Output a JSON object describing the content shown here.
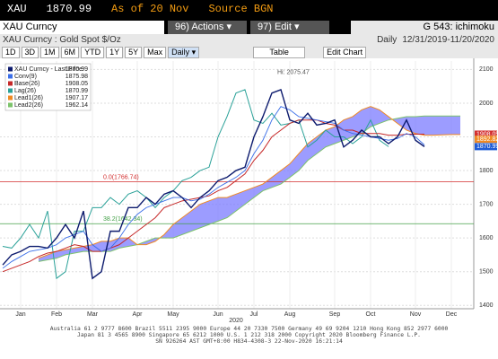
{
  "header": {
    "ticker": "XAU",
    "price": "1870.99",
    "as_of": "As of 20 Nov",
    "source": "Source BGN"
  },
  "toolbar": {
    "security": "XAU Curncy",
    "actions": "96) Actions ▾",
    "edit": "97) Edit ▾",
    "chart_id": "G 543: ichimoku",
    "description": "XAU Curncy : Gold Spot  $/Oz",
    "period": "Daily",
    "range": "12/31/2019-11/20/2020",
    "buttons": [
      "1D",
      "3D",
      "1M",
      "6M",
      "YTD",
      "1Y",
      "5Y",
      "Max"
    ],
    "frequency": "Daily ▾",
    "table": "Table",
    "edit_chart": "Edit Chart"
  },
  "chart_data": {
    "type": "line",
    "categories": [
      null,
      null,
      "Jan",
      null,
      null,
      null,
      "Feb",
      null,
      null,
      null,
      "Mar",
      null,
      null,
      null,
      null,
      "Apr",
      null,
      null,
      null,
      "May",
      null,
      null,
      null,
      null,
      "Jun",
      null,
      null,
      null,
      "Jul",
      null,
      null,
      null,
      "Aug",
      null,
      null,
      null,
      null,
      "Sep",
      null,
      null,
      null,
      "Oct",
      null,
      null,
      null,
      null,
      "Nov",
      null,
      null,
      null,
      "Dec",
      null
    ],
    "year_label": "2020",
    "series": [
      {
        "name": "XAU Curncy - Last Price",
        "legend_value": 1870.99,
        "color": "#0d1b6e",
        "width": 1.4,
        "values": [
          1520,
          1550,
          1560,
          1575,
          1575,
          1570,
          1600,
          1640,
          1600,
          1680,
          1480,
          1500,
          1620,
          1620,
          1690,
          1690,
          1720,
          1700,
          1730,
          1740,
          1720,
          1690,
          1720,
          1740,
          1770,
          1780,
          1800,
          1810,
          1900,
          1960,
          2030,
          2040,
          1950,
          1940,
          1970,
          1935,
          1940,
          1950,
          1870,
          1890,
          1920,
          1900,
          1900,
          1880,
          1900,
          1950,
          1890,
          1871,
          null,
          null,
          null,
          null
        ]
      },
      {
        "name": "Conv(9)",
        "legend_value": 1875.98,
        "color": "#3a6ee8",
        "width": 0.9,
        "values": [
          1510,
          1530,
          1545,
          1560,
          1565,
          1570,
          1580,
          1600,
          1610,
          1620,
          1580,
          1560,
          1570,
          1600,
          1640,
          1670,
          1690,
          1700,
          1710,
          1720,
          1720,
          1710,
          1715,
          1730,
          1750,
          1765,
          1780,
          1800,
          1850,
          1890,
          1950,
          1990,
          1980,
          1960,
          1955,
          1950,
          1945,
          1940,
          1920,
          1910,
          1905,
          1900,
          1895,
          1890,
          1895,
          1910,
          1900,
          1876,
          null,
          null,
          null,
          null
        ]
      },
      {
        "name": "Base(26)",
        "legend_value": 1908.05,
        "color": "#c62828",
        "width": 1,
        "values": [
          1500,
          1510,
          1520,
          1530,
          1545,
          1555,
          1560,
          1570,
          1580,
          1575,
          1560,
          1560,
          1570,
          1580,
          1600,
          1620,
          1640,
          1660,
          1690,
          1700,
          1710,
          1715,
          1720,
          1725,
          1740,
          1750,
          1770,
          1790,
          1830,
          1860,
          1900,
          1920,
          1940,
          1950,
          1950,
          1950,
          1940,
          1935,
          1920,
          1920,
          1910,
          1910,
          1910,
          1905,
          1905,
          1908,
          1908,
          1908,
          null,
          null,
          null,
          null
        ]
      },
      {
        "name": "Lag(26)",
        "legend_value": 1870.99,
        "color": "#2aa198",
        "width": 1,
        "values": [
          1575,
          1570,
          1600,
          1640,
          1600,
          1680,
          1480,
          1500,
          1620,
          1620,
          1690,
          1690,
          1720,
          1700,
          1730,
          1740,
          1720,
          1690,
          1720,
          1740,
          1770,
          1780,
          1800,
          1810,
          1900,
          1960,
          2030,
          2040,
          1950,
          1940,
          1970,
          1935,
          1940,
          1950,
          1870,
          1890,
          1920,
          1900,
          1900,
          1880,
          1900,
          1950,
          1890,
          1871,
          null,
          null,
          null,
          null,
          null,
          null,
          null,
          null
        ]
      },
      {
        "name": "Lead1(26)",
        "legend_value": 1907.17,
        "color": "#f08a24",
        "width": 1,
        "values": [
          null,
          null,
          null,
          null,
          1540,
          1550,
          1560,
          1565,
          1570,
          1575,
          1580,
          1590,
          1590,
          1600,
          1600,
          1580,
          1580,
          1590,
          1610,
          1640,
          1660,
          1680,
          1700,
          1710,
          1720,
          1720,
          1730,
          1740,
          1750,
          1760,
          1780,
          1800,
          1820,
          1850,
          1880,
          1900,
          1920,
          1930,
          1950,
          1960,
          1980,
          1990,
          1980,
          1960,
          1940,
          1920,
          1910,
          1905,
          1905,
          1906,
          1907,
          1907
        ]
      },
      {
        "name": "Lead2(26)",
        "legend_value": 1962.14,
        "color": "#7cc36b",
        "width": 1,
        "values": [
          null,
          null,
          null,
          null,
          1530,
          1535,
          1540,
          1550,
          1555,
          1560,
          1560,
          1560,
          1560,
          1570,
          1575,
          1580,
          1590,
          1600,
          1600,
          1600,
          1610,
          1620,
          1630,
          1640,
          1650,
          1660,
          1680,
          1700,
          1720,
          1740,
          1750,
          1760,
          1780,
          1800,
          1830,
          1850,
          1870,
          1880,
          1890,
          1900,
          1910,
          1930,
          1940,
          1950,
          1955,
          1960,
          1960,
          1962,
          1962,
          1962,
          1962,
          1962
        ]
      }
    ],
    "cloud_color": "#7b7bff",
    "ylim": [
      1390,
      2125
    ],
    "yticks": [
      1400,
      1500,
      1600,
      1700,
      1800,
      1900,
      2000,
      2100
    ],
    "grid": true,
    "levels": [
      {
        "value": 1766.74,
        "label": "0.0(1766.74)",
        "color": "#d32f2f"
      },
      {
        "value": 1642.34,
        "label": "38.2(1642.34)",
        "color": "#43a047"
      }
    ],
    "annotation": {
      "value": 2075.47,
      "index": 31,
      "label": "Hi: 2075.47"
    },
    "price_tags": [
      {
        "value": 1908.05,
        "color": "#d32f2f"
      },
      {
        "value": 1892.82,
        "color": "#f08a24"
      },
      {
        "value": 1870.99,
        "color": "#1e5bd6"
      }
    ]
  },
  "footer": [
    "Australia 61 2 9777 8600 Brazil 5511 2395 9000 Europe 44 20 7330 7500 Germany 49 69 9204 1210 Hong Kong 852 2977 6000",
    "Japan 81 3 4565 8900      Singapore 65 6212 1000      U.S. 1 212 318 2000      Copyright 2020 Bloomberg Finance L.P.",
    "SN 926264 AST  GMT+8:00 H834-4308-3 22-Nov-2020 16:21:14"
  ]
}
